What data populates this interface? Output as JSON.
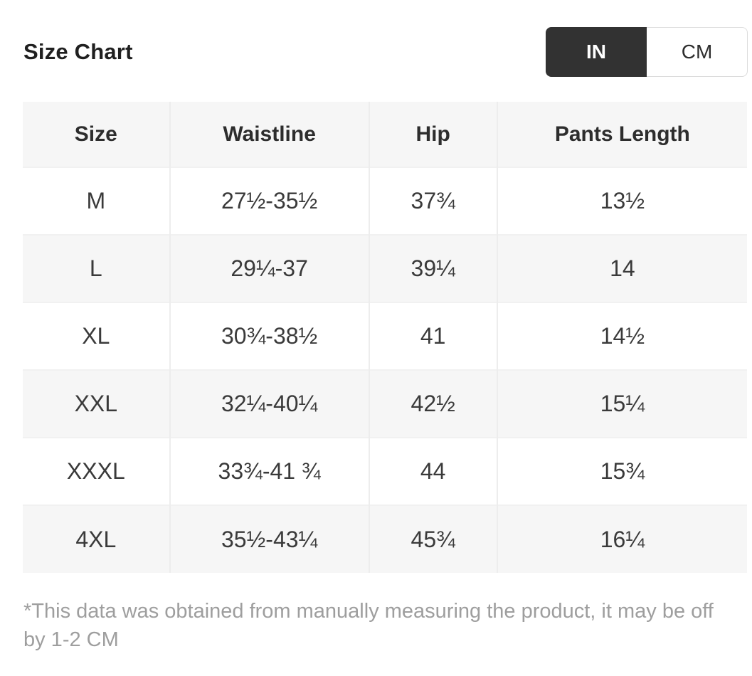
{
  "page": {
    "title": "Size Chart"
  },
  "unit_toggle": {
    "selected": "IN",
    "options": [
      {
        "label": "IN",
        "selected": true
      },
      {
        "label": "CM",
        "selected": false
      }
    ]
  },
  "table": {
    "headers": [
      "Size",
      "Waistline",
      "Hip",
      "Pants Length"
    ],
    "rows": [
      {
        "size": "M",
        "waistline": "27½-35½",
        "hip": "37¾",
        "pants_length": "13½"
      },
      {
        "size": "L",
        "waistline": "29¼-37",
        "hip": "39¼",
        "pants_length": "14"
      },
      {
        "size": "XL",
        "waistline": "30¾-38½",
        "hip": "41",
        "pants_length": "14½"
      },
      {
        "size": "XXL",
        "waistline": "32¼-40¼",
        "hip": "42½",
        "pants_length": "15¼"
      },
      {
        "size": "XXXL",
        "waistline": "33¾-41 ¾",
        "hip": "44",
        "pants_length": "15¾"
      },
      {
        "size": "4XL",
        "waistline": "35½-43¼",
        "hip": "45¾",
        "pants_length": "16¼"
      }
    ]
  },
  "footnote": "*This data was obtained from manually measuring the product, it may be off by 1-2 CM",
  "colors": {
    "toggle_selected_bg": "#323232",
    "toggle_selected_text": "#ffffff",
    "toggle_unselected_border": "#dcdcdc",
    "row_alt_bg": "#f6f6f6",
    "divider": "#ededed",
    "footnote_text": "#9e9e9e",
    "table_text": "#3a3a3a"
  }
}
